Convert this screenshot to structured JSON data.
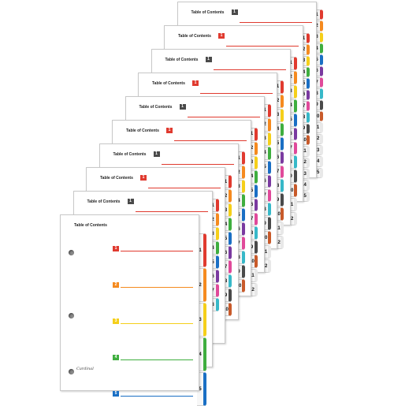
{
  "product": {
    "sheet_title": "Table of Contents",
    "brand_text": "Cardinal",
    "sets": [
      {
        "set_size": 15
      },
      {
        "set_size": 15
      },
      {
        "set_size": 12
      },
      {
        "set_size": 12
      },
      {
        "set_size": 12
      },
      {
        "set_size": 12
      },
      {
        "set_size": 10
      },
      {
        "set_size": 10
      },
      {
        "set_size": 8
      },
      {
        "set_size": 5
      }
    ],
    "tab_colors": [
      "#e03a2f",
      "#f58a1f",
      "#f5cf1a",
      "#3fae3f",
      "#1a6fc4",
      "#7a3aa0",
      "#e04a9a",
      "#37b8c8",
      "#4a4a4a",
      "#c85a2a",
      "#e8e8e8",
      "#e8e8e8",
      "#e8e8e8",
      "#e8e8e8",
      "#e8e8e8"
    ],
    "front_toc_entries": [
      "1",
      "2",
      "3",
      "4",
      "5"
    ],
    "front_tab_labels": [
      "1",
      "2",
      "3",
      "4",
      "5"
    ]
  }
}
